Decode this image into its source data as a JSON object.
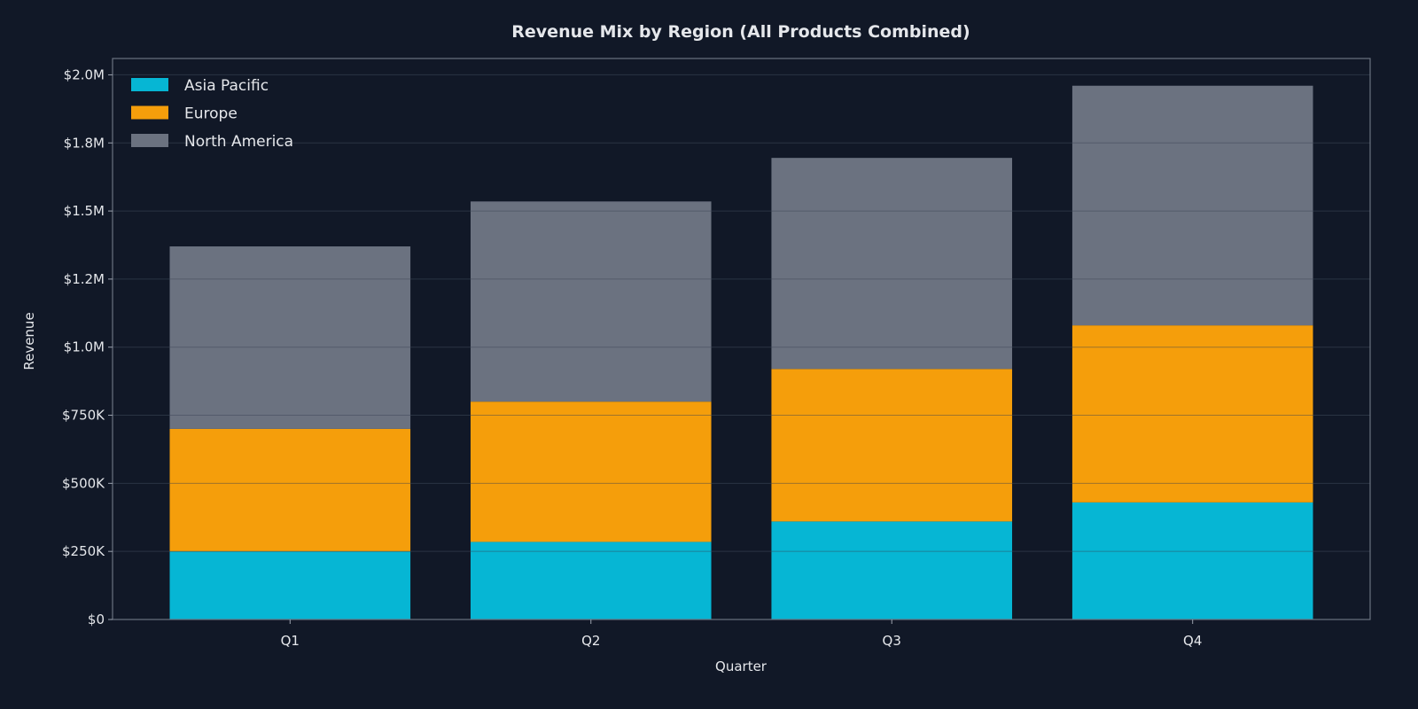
{
  "chart_data": {
    "type": "bar",
    "stacked": true,
    "title": "Revenue Mix by Region (All Products Combined)",
    "xlabel": "Quarter",
    "ylabel": "Revenue",
    "categories": [
      "Q1",
      "Q2",
      "Q3",
      "Q4"
    ],
    "series": [
      {
        "name": "Asia Pacific",
        "color": "#06b6d4",
        "values": [
          250000,
          285000,
          360000,
          430000
        ]
      },
      {
        "name": "Europe",
        "color": "#f59e0b",
        "values": [
          450000,
          515000,
          560000,
          650000
        ]
      },
      {
        "name": "North America",
        "color": "#6b7280",
        "values": [
          670000,
          735000,
          775000,
          880000
        ]
      }
    ],
    "ylim": [
      0,
      2060000
    ],
    "yticks": [
      0,
      250000,
      500000,
      750000,
      1000000,
      1250000,
      1500000,
      1750000,
      2000000
    ],
    "ytick_labels": [
      "$0",
      "$250K",
      "$500K",
      "$750K",
      "$1.0M",
      "$1.2M",
      "$1.5M",
      "$1.8M",
      "$2.0M"
    ],
    "grid": true,
    "legend_position": "top-left",
    "background": "#111827"
  }
}
